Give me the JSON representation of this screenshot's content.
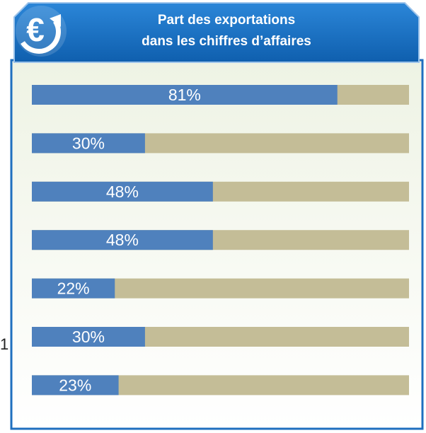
{
  "chart_data": {
    "type": "bar",
    "orientation": "horizontal",
    "title": "Part des exportations",
    "subtitle": "dans les chiffres d’affaires",
    "annotation": "1",
    "values": [
      81,
      30,
      48,
      48,
      22,
      30,
      23
    ],
    "value_labels": [
      "81%",
      "30%",
      "48%",
      "48%",
      "22%",
      "30%",
      "23%"
    ],
    "color": "#4f81bd",
    "track_color": "#c4bd97",
    "xlim": [
      0,
      100
    ]
  }
}
